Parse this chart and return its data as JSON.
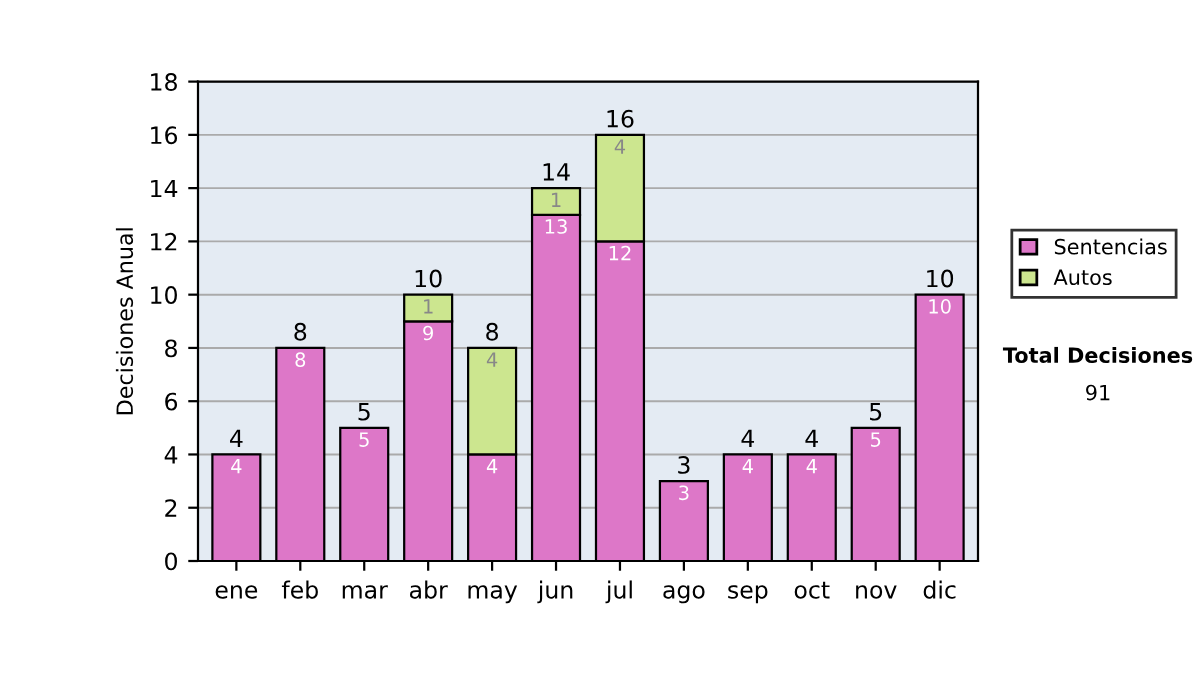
{
  "chart_data": {
    "type": "bar",
    "stacked": true,
    "ylabel": "Decisiones Anual",
    "categories": [
      "ene",
      "feb",
      "mar",
      "abr",
      "may",
      "jun",
      "jul",
      "ago",
      "sep",
      "oct",
      "nov",
      "dic"
    ],
    "series": [
      {
        "name": "Sentencias",
        "color": "#dd77c8",
        "values": [
          4,
          8,
          5,
          9,
          4,
          13,
          12,
          3,
          4,
          4,
          5,
          10
        ]
      },
      {
        "name": "Autos",
        "color": "#cce68f",
        "values": [
          null,
          null,
          null,
          1,
          4,
          1,
          4,
          null,
          null,
          null,
          null,
          null
        ]
      }
    ],
    "data_labels": true,
    "totals": [
      "4",
      "8",
      "5",
      "10",
      "8",
      "14",
      "16",
      "3",
      "4",
      "4",
      "5",
      "10"
    ],
    "ylim": [
      0,
      18
    ],
    "yticks": [
      0,
      2,
      4,
      6,
      8,
      10,
      12,
      14,
      16,
      18
    ],
    "grid": "y",
    "legend": "right",
    "annotations": [
      "Total Decisiones",
      "91"
    ]
  }
}
